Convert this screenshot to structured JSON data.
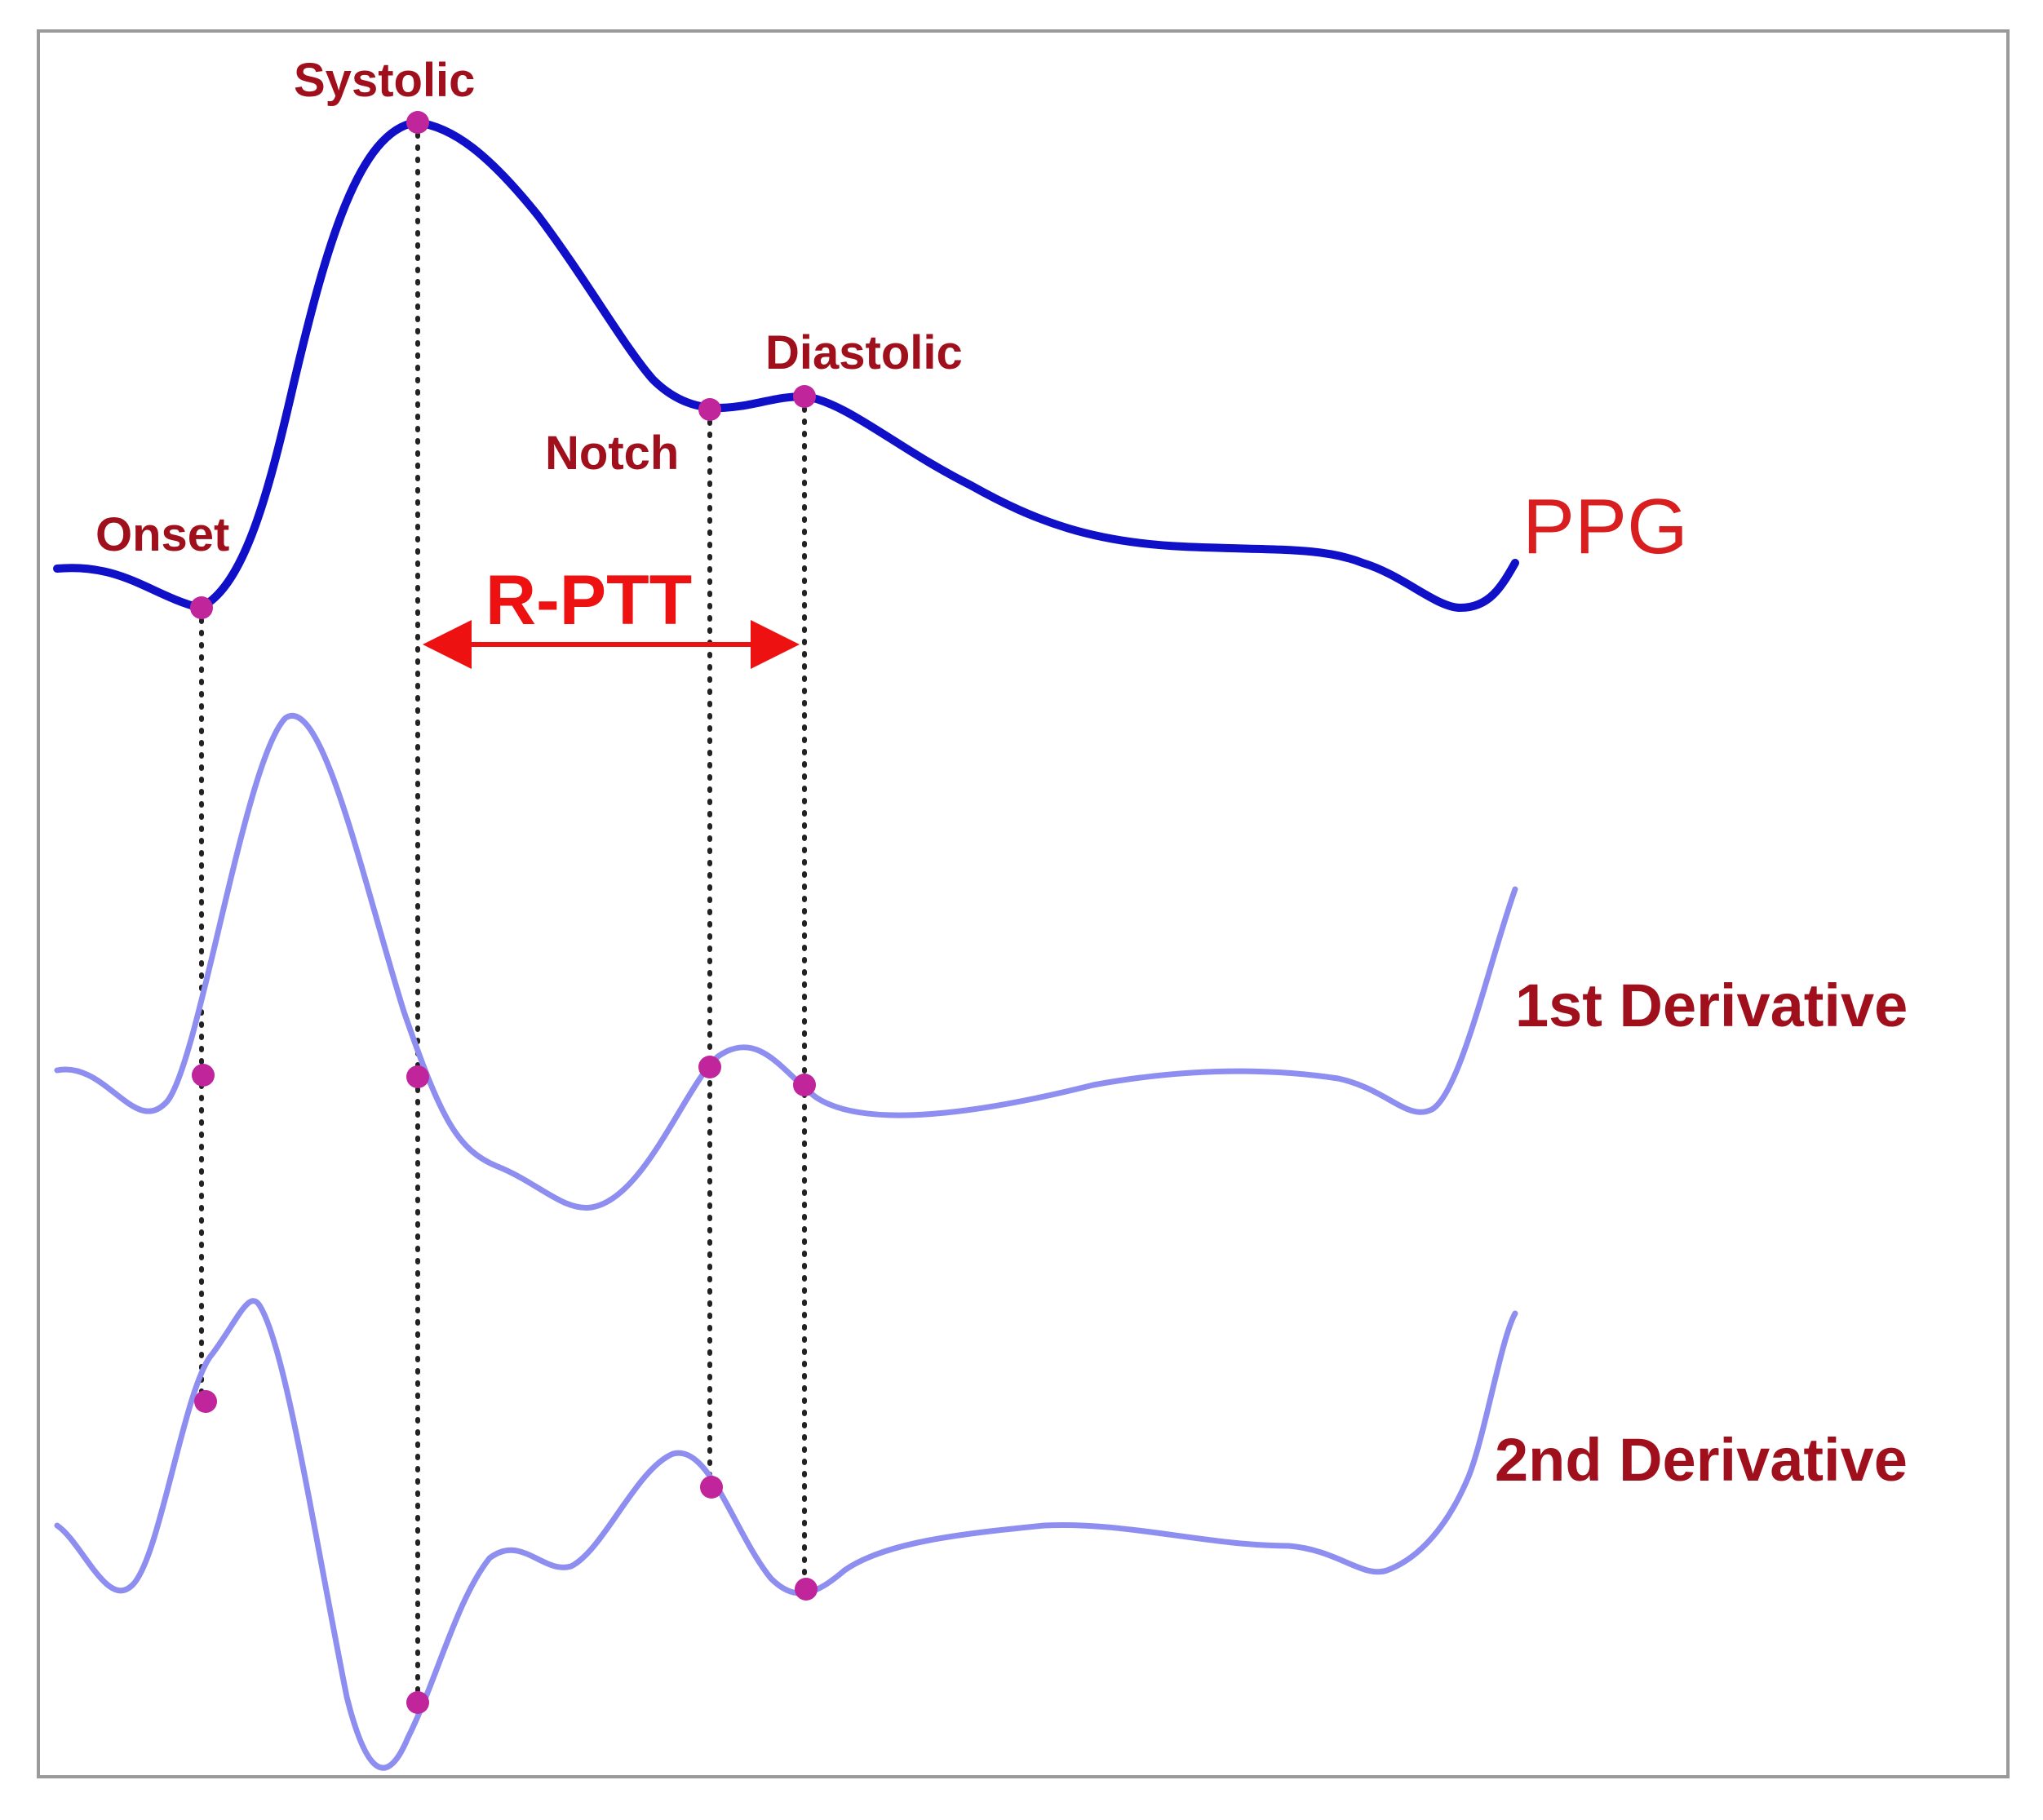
{
  "labels": {
    "systolic": "Systolic",
    "diastolic": "Diastolic",
    "notch": "Notch",
    "onset": "Onset",
    "interval": "R-PTT",
    "ppg": "PPG",
    "first_derivative": "1st Derivative",
    "second_derivative": "2nd Derivative"
  },
  "colors": {
    "ppg_line": "#1010c8",
    "derivative_lines": "#8e8ef0",
    "markers": "#c0259c",
    "point_labels": "#a0101c",
    "trace_labels": "#a0101c",
    "ppg_label": "#d81e1e",
    "interval_arrow": "#ee1111",
    "guide_lines": "#222222",
    "frame": "#9a9a9a"
  },
  "icons": {
    "interval_arrow": "double-headed-arrow"
  }
}
